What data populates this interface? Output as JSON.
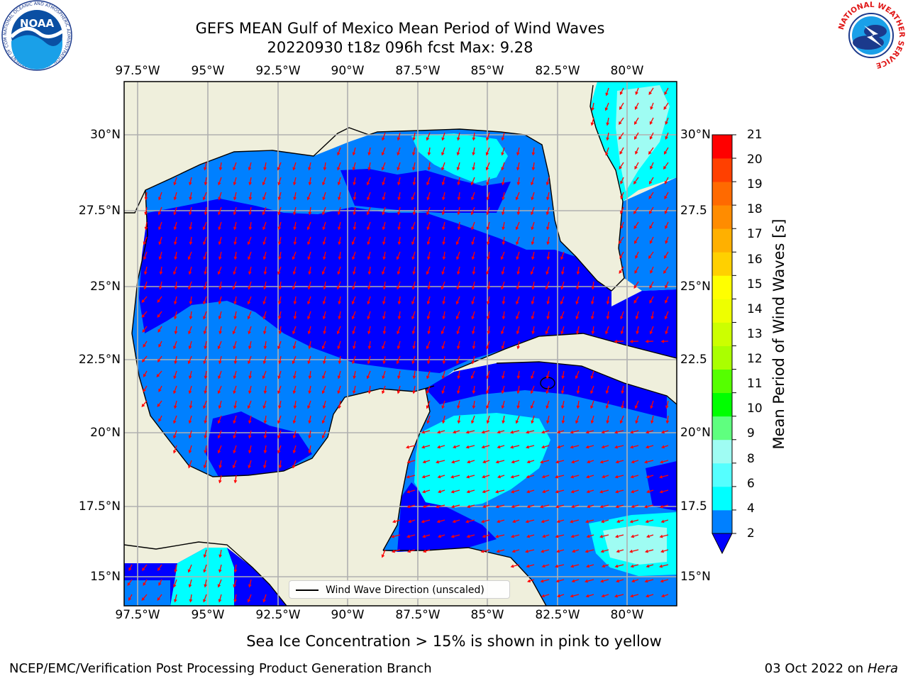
{
  "header": {
    "title_line1": "GEFS MEAN Gulf of Mexico Mean Period of Wind Waves",
    "title_line2": "20220930 t18z 096h fcst   Max: 9.28"
  },
  "logos": {
    "noaa_text": "NOAA",
    "noaa_ring_text": "NATIONAL OCEANIC AND ATMOSPHERIC ADMINISTRATION · U.S. DEPARTMENT OF COMMERCE",
    "nws_ring_text": "NATIONAL WEATHER SERVICE"
  },
  "map": {
    "lon_labels": [
      "97.5°W",
      "95°W",
      "92.5°W",
      "90°W",
      "87.5°W",
      "85°W",
      "82.5°W",
      "80°W"
    ],
    "lat_labels_left": [
      "30°N",
      "27.5°N",
      "25°N",
      "22.5°N",
      "20°N",
      "17.5°N",
      "15°N"
    ],
    "lat_labels_right": [
      "30°N",
      "27.5",
      "25°N",
      "22.5",
      "20°N",
      "17.5",
      "15°N"
    ],
    "extent": {
      "lon_min": -98.0,
      "lon_max": -78.3,
      "lat_min": 14.0,
      "lat_max": 31.8
    },
    "colors": {
      "land": "#efefdc",
      "period_2_4": "#0000ff",
      "period_4_6": "#0080ff",
      "period_6_8": "#00ffff",
      "period_8_9": "#9ffcf3",
      "arrows": "#ff0000"
    },
    "wind_direction_note": "arrows point predominantly toward the southwest",
    "legend_label": "Wind Wave Direction (unscaled)"
  },
  "colorbar": {
    "label": "Mean Period of Wind Waves [s]",
    "ticks": [
      "2",
      "4",
      "6",
      "8",
      "9",
      "10",
      "11",
      "12",
      "13",
      "14",
      "15",
      "16",
      "17",
      "18",
      "19",
      "20",
      "21"
    ],
    "colors": [
      "#0080ff",
      "#00ffff",
      "#55ffff",
      "#9ffcf3",
      "#5fff7f",
      "#00ff00",
      "#55ff00",
      "#aaff00",
      "#ccff00",
      "#eeff00",
      "#ffff00",
      "#ffd000",
      "#ffb000",
      "#ff8c00",
      "#ff6a00",
      "#ff4000",
      "#ff0000"
    ],
    "extend_color": "#0000ff"
  },
  "footer": {
    "note": "Sea Ice Concentration > 15% is shown in pink to yellow",
    "left": "NCEP/EMC/Verification Post Processing Product Generation Branch",
    "right_date": "03 Oct 2022 on ",
    "right_host": "Hera"
  }
}
